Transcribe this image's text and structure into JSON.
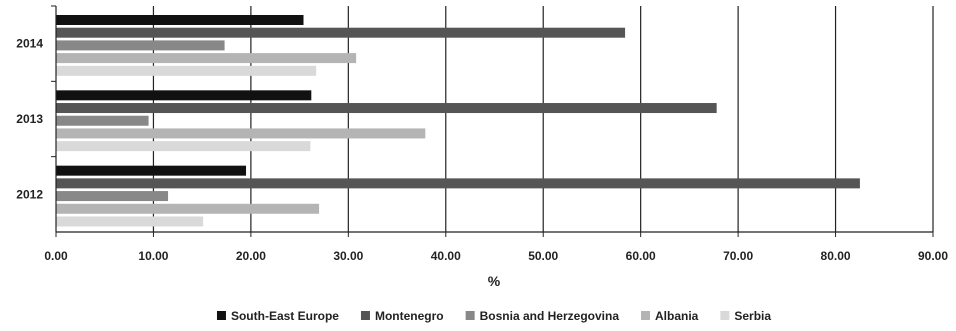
{
  "chart_data": {
    "type": "bar",
    "orientation": "horizontal",
    "title": "",
    "xlabel": "%",
    "ylabel": "",
    "xlim": [
      0,
      90
    ],
    "x_ticks": [
      "0.00",
      "10.00",
      "20.00",
      "30.00",
      "40.00",
      "50.00",
      "60.00",
      "70.00",
      "80.00",
      "90.00"
    ],
    "categories": [
      "2014",
      "2013",
      "2012"
    ],
    "grid": "vertical",
    "legend_position": "bottom",
    "series": [
      {
        "name": "South-East Europe",
        "color": "#111111",
        "values": [
          25.4,
          26.2,
          19.5
        ]
      },
      {
        "name": "Montenegro",
        "color": "#555555",
        "values": [
          58.4,
          67.8,
          82.5
        ]
      },
      {
        "name": "Bosnia and Herzegovina",
        "color": "#888888",
        "values": [
          17.3,
          9.5,
          11.5
        ]
      },
      {
        "name": "Albania",
        "color": "#b4b4b4",
        "values": [
          30.8,
          37.9,
          27.0
        ]
      },
      {
        "name": "Serbia",
        "color": "#d9d9d9",
        "values": [
          26.7,
          26.1,
          15.1
        ]
      }
    ]
  }
}
